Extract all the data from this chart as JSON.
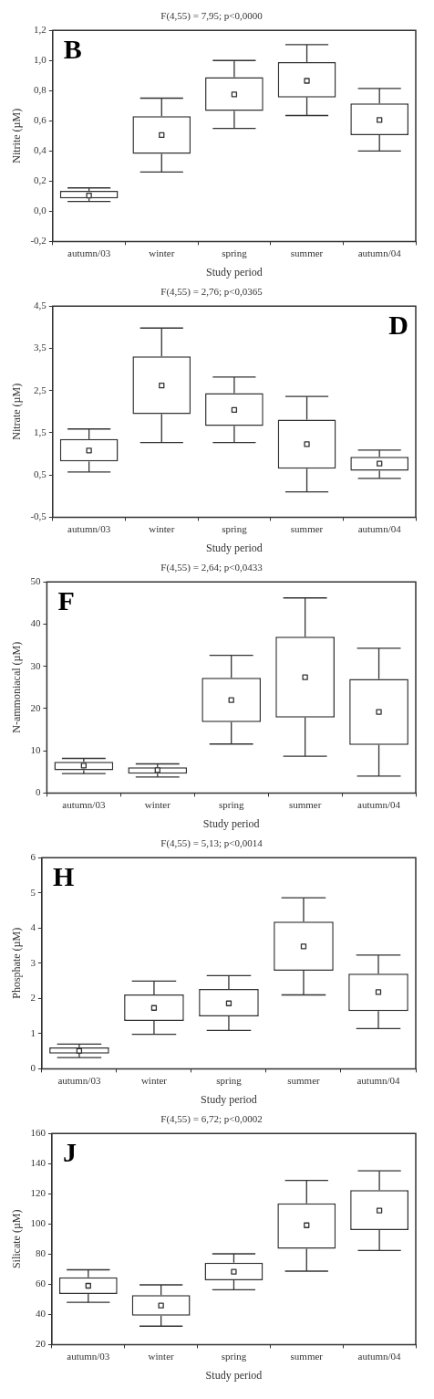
{
  "chart_data": [
    {
      "type": "box",
      "title": "F(4,55) = 7,95; p<0,0000",
      "xlabel": "Study period",
      "ylabel": "Nitrite (µM)",
      "annotations": [
        "B"
      ],
      "categories": [
        "autumn/03",
        "winter",
        "spring",
        "summer",
        "autumn/04"
      ],
      "ylim": [
        -0.2,
        1.2
      ],
      "yticks": [
        {
          "value": -0.2,
          "label": "-0,2"
        },
        {
          "value": 0,
          "label": "0,0"
        },
        {
          "value": 0.2,
          "label": "0,2"
        },
        {
          "value": 0.4,
          "label": "0,4"
        },
        {
          "value": 0.6,
          "label": "0,6"
        },
        {
          "value": 0.8,
          "label": "0,8"
        },
        {
          "value": 1,
          "label": "1,0"
        },
        {
          "value": 1.2,
          "label": "1,2"
        }
      ],
      "grid": false,
      "legend": false,
      "boxes": [
        {
          "low": 0.065,
          "q1": 0.085,
          "median": 0.105,
          "q3": 0.135,
          "high": 0.155
        },
        {
          "low": 0.26,
          "q1": 0.38,
          "median": 0.505,
          "q3": 0.63,
          "high": 0.75
        },
        {
          "low": 0.55,
          "q1": 0.665,
          "median": 0.775,
          "q3": 0.89,
          "high": 1.0
        },
        {
          "low": 0.635,
          "q1": 0.755,
          "median": 0.865,
          "q3": 0.99,
          "high": 1.105
        },
        {
          "low": 0.4,
          "q1": 0.505,
          "median": 0.605,
          "q3": 0.715,
          "high": 0.815
        }
      ]
    },
    {
      "type": "box",
      "title": "F(4,55) = 2,76; p<0,0365",
      "xlabel": "Study period",
      "ylabel": "Nitrate (µM)",
      "annotations": [
        "D"
      ],
      "categories": [
        "autumn/03",
        "winter",
        "spring",
        "summer",
        "autumn/04"
      ],
      "ylim": [
        -0.5,
        4.5
      ],
      "yticks": [
        {
          "value": -0.5,
          "label": "-0,5"
        },
        {
          "value": 0.5,
          "label": "0,5"
        },
        {
          "value": 1.5,
          "label": "1,5"
        },
        {
          "value": 2.5,
          "label": "2,5"
        },
        {
          "value": 3.5,
          "label": "3,5"
        },
        {
          "value": 4.5,
          "label": "4,5"
        }
      ],
      "grid": false,
      "legend": false,
      "boxes": [
        {
          "low": 0.57,
          "q1": 0.82,
          "median": 1.08,
          "q3": 1.35,
          "high": 1.59
        },
        {
          "low": 1.27,
          "q1": 1.94,
          "median": 2.62,
          "q3": 3.31,
          "high": 3.98
        },
        {
          "low": 1.27,
          "q1": 1.66,
          "median": 2.04,
          "q3": 2.44,
          "high": 2.82
        },
        {
          "low": 0.1,
          "q1": 0.65,
          "median": 1.23,
          "q3": 1.81,
          "high": 2.36
        },
        {
          "low": 0.42,
          "q1": 0.6,
          "median": 0.77,
          "q3": 0.93,
          "high": 1.09
        }
      ]
    },
    {
      "type": "box",
      "title": "F(4,55) = 2,64; p<0,0433",
      "xlabel": "Study period",
      "ylabel": "N-ammoniacal (µM)",
      "annotations": [
        "F"
      ],
      "categories": [
        "autumn/03",
        "winter",
        "spring",
        "summer",
        "autumn/04"
      ],
      "ylim": [
        0,
        50
      ],
      "yticks": [
        0,
        10,
        20,
        30,
        40,
        50
      ],
      "grid": false,
      "legend": false,
      "boxes": [
        {
          "low": 4.6,
          "q1": 5.4,
          "median": 6.5,
          "q3": 7.4,
          "high": 8.2
        },
        {
          "low": 3.8,
          "q1": 4.6,
          "median": 5.4,
          "q3": 6.1,
          "high": 6.9
        },
        {
          "low": 11.6,
          "q1": 16.8,
          "median": 22.0,
          "q3": 27.3,
          "high": 32.6
        },
        {
          "low": 8.7,
          "q1": 17.9,
          "median": 27.4,
          "q3": 37.0,
          "high": 46.2
        },
        {
          "low": 4.0,
          "q1": 11.4,
          "median": 19.2,
          "q3": 27.0,
          "high": 34.3
        }
      ]
    },
    {
      "type": "box",
      "title": "F(4,55) = 5,13; p<0,0014",
      "xlabel": "Study period",
      "ylabel": "Phosphate (µM)",
      "annotations": [
        "H"
      ],
      "categories": [
        "autumn/03",
        "winter",
        "spring",
        "summer",
        "autumn/04"
      ],
      "ylim": [
        0,
        6
      ],
      "yticks": [
        0,
        1,
        2,
        3,
        4,
        5,
        6
      ],
      "grid": false,
      "legend": false,
      "boxes": [
        {
          "low": 0.32,
          "q1": 0.43,
          "median": 0.51,
          "q3": 0.61,
          "high": 0.7
        },
        {
          "low": 0.98,
          "q1": 1.36,
          "median": 1.73,
          "q3": 2.11,
          "high": 2.49
        },
        {
          "low": 1.09,
          "q1": 1.49,
          "median": 1.86,
          "q3": 2.27,
          "high": 2.65
        },
        {
          "low": 2.1,
          "q1": 2.79,
          "median": 3.48,
          "q3": 4.18,
          "high": 4.86
        },
        {
          "low": 1.14,
          "q1": 1.64,
          "median": 2.18,
          "q3": 2.7,
          "high": 3.23
        }
      ]
    },
    {
      "type": "box",
      "title": "F(4,55) = 6,72; p<0,0002",
      "xlabel": "Study period",
      "ylabel": "Silicate (µM)",
      "annotations": [
        "J"
      ],
      "categories": [
        "autumn/03",
        "winter",
        "spring",
        "summer",
        "autumn/04"
      ],
      "ylim": [
        20,
        160
      ],
      "yticks": [
        20,
        40,
        60,
        80,
        100,
        120,
        140,
        160
      ],
      "grid": false,
      "legend": false,
      "boxes": [
        {
          "low": 48,
          "q1": 53.5,
          "median": 59,
          "q3": 64.6,
          "high": 69.6
        },
        {
          "low": 32.2,
          "q1": 39.1,
          "median": 45.9,
          "q3": 52.8,
          "high": 59.6
        },
        {
          "low": 56.3,
          "q1": 62.6,
          "median": 68.3,
          "q3": 74.3,
          "high": 80.2
        },
        {
          "low": 68.7,
          "q1": 83.5,
          "median": 99.1,
          "q3": 113.7,
          "high": 128.9
        },
        {
          "low": 82.4,
          "q1": 95.9,
          "median": 108.9,
          "q3": 122.4,
          "high": 135.2
        }
      ]
    }
  ]
}
